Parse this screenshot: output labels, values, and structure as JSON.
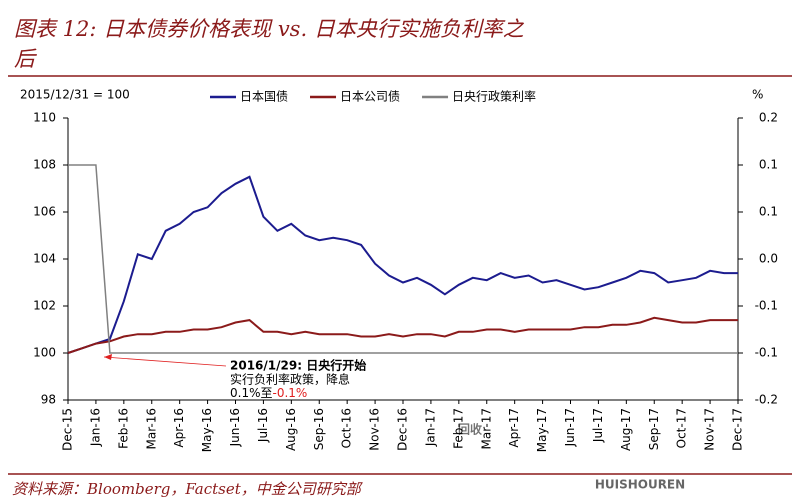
{
  "chart_data": {
    "type": "line",
    "title": "图表 12: 日本债券价格表现 vs. 日本央行实施负利率之后",
    "y_axis_label": "2015/12/31 = 100",
    "y2_axis_label": "%",
    "source": "资料来源：Bloomberg，Factset，中金公司研究部",
    "annotation": [
      "2016/1/29: 日央行开始",
      "实行负利率政策，降息",
      "0.1%至",
      "-0.1%"
    ],
    "watermark": [
      "回收",
      "HUISHOUREN"
    ],
    "categories": [
      "Dec-15",
      null,
      "Jan-16",
      null,
      "Feb-16",
      null,
      "Mar-16",
      null,
      "Apr-16",
      null,
      "May-16",
      null,
      "Jun-16",
      null,
      "Jul-16",
      null,
      "Aug-16",
      null,
      "Sep-16",
      null,
      "Oct-16",
      null,
      "Nov-16",
      null,
      "Dec-16",
      null,
      "Jan-17",
      null,
      "Feb-17",
      null,
      "Mar-17",
      null,
      "Apr-17",
      null,
      "May-17",
      null,
      "Jun-17",
      null,
      "Jul-17",
      null,
      "Aug-17",
      null,
      "Sep-17",
      null,
      "Oct-17",
      null,
      "Nov-17",
      null,
      "Dec-17"
    ],
    "series": [
      {
        "name": "日本国债",
        "color": "#1c1c8f",
        "values": [
          100,
          100.2,
          100.4,
          100.6,
          102.2,
          104.2,
          104.0,
          105.2,
          105.5,
          106.0,
          106.2,
          106.8,
          107.2,
          107.5,
          105.8,
          105.2,
          105.5,
          105.0,
          104.8,
          104.9,
          104.8,
          104.6,
          103.8,
          103.3,
          103.0,
          103.2,
          102.9,
          102.5,
          102.9,
          103.2,
          103.1,
          103.4,
          103.2,
          103.3,
          103.0,
          103.1,
          102.9,
          102.7,
          102.8,
          103.0,
          103.2,
          103.5,
          103.4,
          103.0,
          103.1,
          103.2,
          103.5,
          103.4,
          103.4
        ]
      },
      {
        "name": "日本公司债",
        "color": "#8b1a1a",
        "values": [
          100,
          100.2,
          100.4,
          100.5,
          100.7,
          100.8,
          100.8,
          100.9,
          100.9,
          101.0,
          101.0,
          101.1,
          101.3,
          101.4,
          100.9,
          100.9,
          100.8,
          100.9,
          100.8,
          100.8,
          100.8,
          100.7,
          100.7,
          100.8,
          100.7,
          100.8,
          100.8,
          100.7,
          100.9,
          100.9,
          101.0,
          101.0,
          100.9,
          101.0,
          101.0,
          101.0,
          101.0,
          101.1,
          101.1,
          101.2,
          101.2,
          101.3,
          101.5,
          101.4,
          101.3,
          101.3,
          101.4,
          101.4,
          101.4
        ]
      },
      {
        "name": "日央行政策利率",
        "color": "#808080",
        "axis": "y2",
        "values": [
          0.1,
          0.1,
          0.1,
          -0.1,
          -0.1,
          -0.1,
          -0.1,
          -0.1,
          -0.1,
          -0.1,
          -0.1,
          -0.1,
          -0.1,
          -0.1,
          -0.1,
          -0.1,
          -0.1,
          -0.1,
          -0.1,
          -0.1,
          -0.1,
          -0.1,
          -0.1,
          -0.1,
          -0.1,
          -0.1,
          -0.1,
          -0.1,
          -0.1,
          -0.1,
          -0.1,
          -0.1,
          -0.1,
          -0.1,
          -0.1,
          -0.1,
          -0.1,
          -0.1,
          -0.1,
          -0.1,
          -0.1,
          -0.1,
          -0.1,
          -0.1,
          -0.1,
          -0.1,
          -0.1,
          -0.1,
          -0.1
        ]
      }
    ],
    "ylim": [
      98,
      110
    ],
    "yticks": [
      98,
      100,
      102,
      104,
      106,
      108,
      110
    ],
    "y2lim": [
      -0.15,
      0.15
    ],
    "y2ticks": [
      {
        "value": -0.15,
        "label": "-0.2"
      },
      -0.1,
      {
        "value": -0.05,
        "label": "-0.1"
      },
      {
        "value": 0,
        "label": "0.0"
      },
      {
        "value": 0.05,
        "label": "0.1"
      },
      0.1,
      {
        "value": 0.15,
        "label": "0.2"
      }
    ],
    "grid": false
  }
}
